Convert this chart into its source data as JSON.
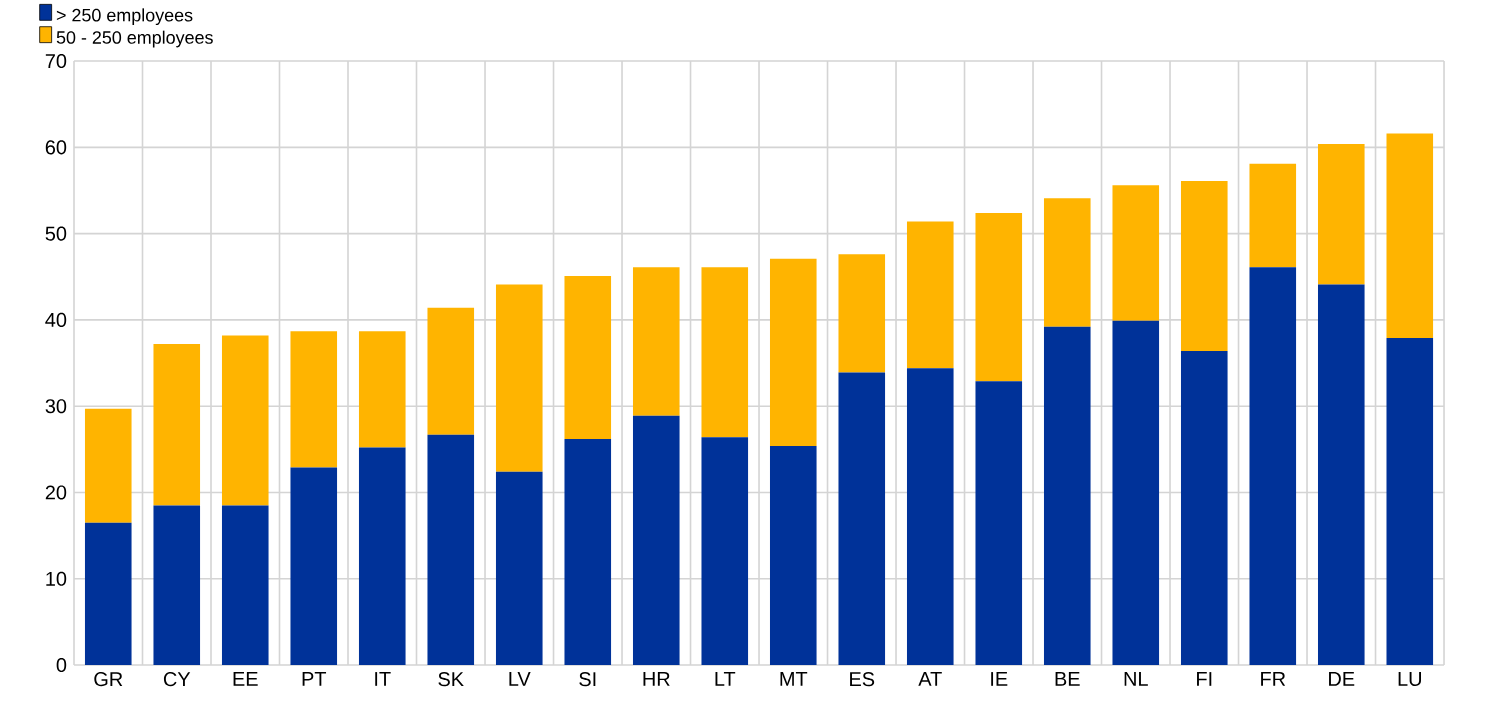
{
  "chart_data": {
    "type": "bar",
    "stacked": true,
    "categories": [
      "GR",
      "CY",
      "EE",
      "PT",
      "IT",
      "SK",
      "LV",
      "SI",
      "HR",
      "LT",
      "MT",
      "ES",
      "AT",
      "IE",
      "BE",
      "NL",
      "FI",
      "FR",
      "DE",
      "LU"
    ],
    "series": [
      {
        "name": "> 250 employees",
        "color": "#003299",
        "values": [
          16.5,
          18.5,
          18.5,
          22.9,
          25.2,
          26.7,
          22.4,
          26.2,
          28.9,
          26.4,
          25.4,
          33.9,
          34.4,
          32.9,
          39.2,
          39.9,
          36.4,
          46.1,
          44.1,
          37.9
        ]
      },
      {
        "name": "50 - 250 employees",
        "color": "#ffb400",
        "values": [
          13.2,
          18.7,
          19.7,
          15.8,
          13.5,
          14.7,
          21.7,
          18.9,
          17.2,
          19.7,
          21.7,
          13.7,
          17.0,
          19.5,
          14.9,
          15.7,
          19.7,
          12.0,
          16.3,
          23.7
        ]
      }
    ],
    "ylim": [
      0,
      70
    ],
    "yticks": [
      0,
      10,
      20,
      30,
      40,
      50,
      60,
      70
    ],
    "grid": true,
    "legend": "top left"
  }
}
